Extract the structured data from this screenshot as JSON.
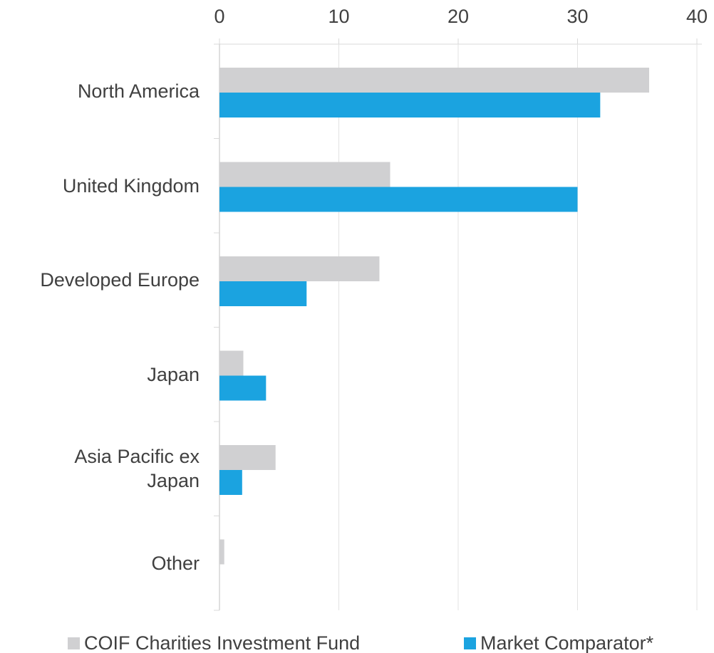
{
  "chart_data": {
    "type": "bar",
    "orientation": "horizontal",
    "categories": [
      "North America",
      "United Kingdom",
      "Developed Europe",
      "Japan",
      "Asia Pacific ex\nJapan",
      "Other"
    ],
    "series": [
      {
        "name": "COIF Charities Investment Fund",
        "color": "#d0d0d2",
        "values": [
          36.0,
          14.3,
          13.4,
          2.0,
          4.7,
          0.4
        ]
      },
      {
        "name": "Market Comparator*",
        "color": "#1ba3e0",
        "values": [
          31.9,
          30.0,
          7.3,
          3.9,
          1.9,
          0
        ]
      }
    ],
    "xlim": [
      0,
      40
    ],
    "xticks": [
      0,
      10,
      20,
      30,
      40
    ],
    "grid": true,
    "legend": "bottom"
  }
}
